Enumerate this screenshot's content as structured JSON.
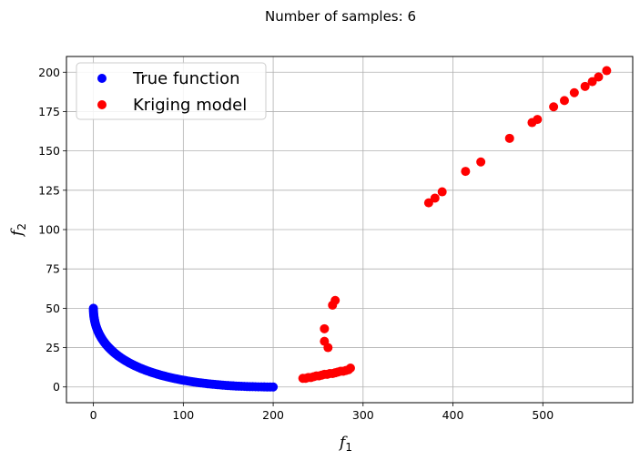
{
  "chart_data": {
    "type": "scatter",
    "title": "Number of samples: 6",
    "xlabel": "f",
    "xlabel_sub": "1",
    "ylabel": "f",
    "ylabel_sub": "2",
    "xlim": [
      -30,
      600
    ],
    "ylim": [
      -10,
      210
    ],
    "xticks": [
      0,
      100,
      200,
      300,
      400,
      500
    ],
    "yticks": [
      0,
      25,
      50,
      75,
      100,
      125,
      150,
      175,
      200
    ],
    "grid": true,
    "legend_position": "top-left",
    "series": [
      {
        "name": "True function",
        "color": "#0000ff",
        "curve": {
          "x_start": 0,
          "x_end": 200,
          "y_at_x0": 50,
          "formula": "50*(1-sqrt(x/200))^2",
          "points": 120
        }
      },
      {
        "name": "Kriging model",
        "color": "#ff0000",
        "points": [
          [
            233,
            5.5
          ],
          [
            236,
            5.5
          ],
          [
            239,
            6
          ],
          [
            242,
            6
          ],
          [
            245,
            6.5
          ],
          [
            248,
            7
          ],
          [
            251,
            7
          ],
          [
            254,
            7.5
          ],
          [
            257,
            8
          ],
          [
            260,
            8
          ],
          [
            263,
            8.5
          ],
          [
            266,
            8.5
          ],
          [
            269,
            9
          ],
          [
            272,
            9.5
          ],
          [
            275,
            10
          ],
          [
            278,
            10
          ],
          [
            281,
            10.5
          ],
          [
            284,
            11
          ],
          [
            286,
            12
          ],
          [
            257,
            37
          ],
          [
            257,
            29
          ],
          [
            261,
            25
          ],
          [
            266,
            52
          ],
          [
            269,
            55
          ],
          [
            373,
            117
          ],
          [
            380,
            120
          ],
          [
            388,
            124
          ],
          [
            414,
            137
          ],
          [
            431,
            143
          ],
          [
            463,
            158
          ],
          [
            488,
            168
          ],
          [
            494,
            170
          ],
          [
            512,
            178
          ],
          [
            524,
            182
          ],
          [
            535,
            187
          ],
          [
            547,
            191
          ],
          [
            555,
            194
          ],
          [
            562,
            197
          ],
          [
            571,
            201
          ]
        ]
      }
    ]
  }
}
